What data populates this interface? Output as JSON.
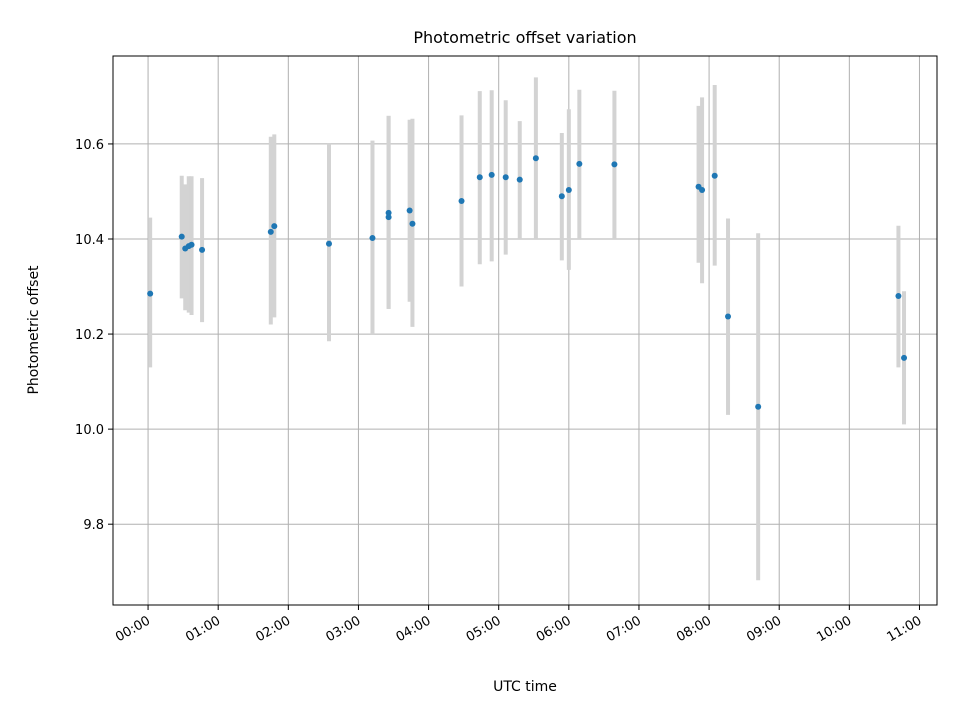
{
  "chart_data": {
    "type": "scatter",
    "title": "Photometric offset variation",
    "xlabel": "UTC time",
    "ylabel": "Photometric offset",
    "x_unit": "hours UTC",
    "xlim": [
      -0.5,
      11.25
    ],
    "ylim": [
      9.63,
      10.785
    ],
    "x_ticks": [
      {
        "value": 0,
        "label": "00:00"
      },
      {
        "value": 1,
        "label": "01:00"
      },
      {
        "value": 2,
        "label": "02:00"
      },
      {
        "value": 3,
        "label": "03:00"
      },
      {
        "value": 4,
        "label": "04:00"
      },
      {
        "value": 5,
        "label": "05:00"
      },
      {
        "value": 6,
        "label": "06:00"
      },
      {
        "value": 7,
        "label": "07:00"
      },
      {
        "value": 8,
        "label": "08:00"
      },
      {
        "value": 9,
        "label": "09:00"
      },
      {
        "value": 10,
        "label": "10:00"
      },
      {
        "value": 11,
        "label": "11:00"
      }
    ],
    "y_ticks": [
      {
        "value": 9.8,
        "label": "9.8"
      },
      {
        "value": 10.0,
        "label": "10.0"
      },
      {
        "value": 10.2,
        "label": "10.2"
      },
      {
        "value": 10.4,
        "label": "10.4"
      },
      {
        "value": 10.6,
        "label": "10.6"
      }
    ],
    "grid": true,
    "colors": {
      "point": "#1f77b4",
      "errorbar": "#d3d3d3",
      "grid": "#b0b0b0"
    },
    "points": [
      {
        "x": 0.03,
        "y": 10.285,
        "ylow": 10.13,
        "yhigh": 10.445
      },
      {
        "x": 0.48,
        "y": 10.405,
        "ylow": 10.275,
        "yhigh": 10.533
      },
      {
        "x": 0.53,
        "y": 10.38,
        "ylow": 10.25,
        "yhigh": 10.515
      },
      {
        "x": 0.58,
        "y": 10.385,
        "ylow": 10.245,
        "yhigh": 10.532
      },
      {
        "x": 0.62,
        "y": 10.388,
        "ylow": 10.24,
        "yhigh": 10.532
      },
      {
        "x": 0.77,
        "y": 10.377,
        "ylow": 10.225,
        "yhigh": 10.528
      },
      {
        "x": 1.75,
        "y": 10.415,
        "ylow": 10.22,
        "yhigh": 10.615
      },
      {
        "x": 1.8,
        "y": 10.427,
        "ylow": 10.235,
        "yhigh": 10.62
      },
      {
        "x": 2.58,
        "y": 10.39,
        "ylow": 10.185,
        "yhigh": 10.6
      },
      {
        "x": 3.2,
        "y": 10.402,
        "ylow": 10.2,
        "yhigh": 10.607
      },
      {
        "x": 3.43,
        "y": 10.455,
        "ylow": 10.253,
        "yhigh": 10.659
      },
      {
        "x": 3.43,
        "y": 10.446,
        "ylow": 10.253,
        "yhigh": 10.659
      },
      {
        "x": 3.73,
        "y": 10.46,
        "ylow": 10.268,
        "yhigh": 10.651
      },
      {
        "x": 3.77,
        "y": 10.432,
        "ylow": 10.215,
        "yhigh": 10.653
      },
      {
        "x": 4.47,
        "y": 10.48,
        "ylow": 10.3,
        "yhigh": 10.66
      },
      {
        "x": 4.73,
        "y": 10.53,
        "ylow": 10.347,
        "yhigh": 10.711
      },
      {
        "x": 4.9,
        "y": 10.535,
        "ylow": 10.353,
        "yhigh": 10.713
      },
      {
        "x": 5.1,
        "y": 10.53,
        "ylow": 10.367,
        "yhigh": 10.692
      },
      {
        "x": 5.3,
        "y": 10.525,
        "ylow": 10.4,
        "yhigh": 10.648
      },
      {
        "x": 5.53,
        "y": 10.57,
        "ylow": 10.4,
        "yhigh": 10.74
      },
      {
        "x": 5.9,
        "y": 10.49,
        "ylow": 10.355,
        "yhigh": 10.623
      },
      {
        "x": 6.0,
        "y": 10.503,
        "ylow": 10.335,
        "yhigh": 10.673
      },
      {
        "x": 6.15,
        "y": 10.558,
        "ylow": 10.4,
        "yhigh": 10.714
      },
      {
        "x": 6.65,
        "y": 10.557,
        "ylow": 10.4,
        "yhigh": 10.712
      },
      {
        "x": 7.85,
        "y": 10.51,
        "ylow": 10.35,
        "yhigh": 10.68
      },
      {
        "x": 7.9,
        "y": 10.503,
        "ylow": 10.307,
        "yhigh": 10.698
      },
      {
        "x": 8.08,
        "y": 10.533,
        "ylow": 10.344,
        "yhigh": 10.724
      },
      {
        "x": 8.27,
        "y": 10.237,
        "ylow": 10.03,
        "yhigh": 10.443
      },
      {
        "x": 8.7,
        "y": 10.047,
        "ylow": 9.682,
        "yhigh": 10.412
      },
      {
        "x": 10.7,
        "y": 10.28,
        "ylow": 10.13,
        "yhigh": 10.428
      },
      {
        "x": 10.78,
        "y": 10.15,
        "ylow": 10.01,
        "yhigh": 10.29
      }
    ]
  }
}
